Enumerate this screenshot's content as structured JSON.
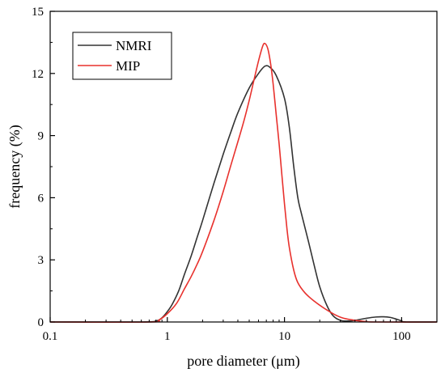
{
  "chart_data": {
    "type": "line",
    "title": "",
    "xlabel": "pore diameter (μm)",
    "ylabel": "frequency (%)",
    "x_scale": "log",
    "xlim": [
      0.1,
      200
    ],
    "ylim": [
      0,
      15
    ],
    "x_ticks": [
      0.1,
      1,
      10,
      100
    ],
    "x_tick_labels": [
      "0.1",
      "1",
      "10",
      "100"
    ],
    "y_ticks": [
      0,
      3,
      6,
      9,
      12,
      15
    ],
    "y_tick_labels": [
      "0",
      "3",
      "6",
      "9",
      "12",
      "15"
    ],
    "grid": false,
    "legend": {
      "position": "top-left",
      "boxed": true
    },
    "series": [
      {
        "name": "NMRI",
        "color": "#333333",
        "points": [
          [
            0.1,
            0
          ],
          [
            0.6,
            0
          ],
          [
            0.8,
            0.05
          ],
          [
            0.9,
            0.2
          ],
          [
            1.0,
            0.5
          ],
          [
            1.1,
            0.85
          ],
          [
            1.25,
            1.5
          ],
          [
            1.4,
            2.3
          ],
          [
            1.6,
            3.2
          ],
          [
            1.8,
            4.1
          ],
          [
            2.0,
            4.9
          ],
          [
            2.5,
            6.7
          ],
          [
            3.0,
            8.1
          ],
          [
            3.5,
            9.2
          ],
          [
            4.0,
            10.1
          ],
          [
            5.0,
            11.3
          ],
          [
            6.0,
            12.0
          ],
          [
            6.8,
            12.35
          ],
          [
            7.5,
            12.3
          ],
          [
            8.5,
            11.9
          ],
          [
            10,
            10.8
          ],
          [
            11,
            9.4
          ],
          [
            12,
            7.5
          ],
          [
            13,
            6.0
          ],
          [
            14,
            5.2
          ],
          [
            16,
            3.9
          ],
          [
            18,
            2.7
          ],
          [
            20,
            1.7
          ],
          [
            23,
            0.8
          ],
          [
            26,
            0.3
          ],
          [
            30,
            0.08
          ],
          [
            35,
            0.05
          ],
          [
            40,
            0.08
          ],
          [
            50,
            0.18
          ],
          [
            60,
            0.24
          ],
          [
            70,
            0.25
          ],
          [
            80,
            0.22
          ],
          [
            90,
            0.14
          ],
          [
            100,
            0.05
          ],
          [
            110,
            0
          ],
          [
            200,
            0
          ]
        ]
      },
      {
        "name": "MIP",
        "color": "#e8312d",
        "points": [
          [
            0.1,
            0
          ],
          [
            0.7,
            0
          ],
          [
            0.85,
            0.1
          ],
          [
            1.0,
            0.4
          ],
          [
            1.2,
            0.9
          ],
          [
            1.4,
            1.6
          ],
          [
            1.6,
            2.2
          ],
          [
            1.8,
            2.8
          ],
          [
            2.0,
            3.4
          ],
          [
            2.5,
            4.9
          ],
          [
            3.0,
            6.3
          ],
          [
            3.5,
            7.6
          ],
          [
            4.0,
            8.7
          ],
          [
            4.5,
            9.7
          ],
          [
            5.0,
            10.7
          ],
          [
            5.5,
            11.7
          ],
          [
            6.0,
            12.6
          ],
          [
            6.5,
            13.3
          ],
          [
            6.8,
            13.45
          ],
          [
            7.2,
            13.2
          ],
          [
            7.6,
            12.5
          ],
          [
            8.0,
            11.5
          ],
          [
            8.5,
            10.0
          ],
          [
            9.0,
            8.6
          ],
          [
            9.5,
            7.1
          ],
          [
            10,
            5.7
          ],
          [
            10.5,
            4.5
          ],
          [
            11,
            3.6
          ],
          [
            12,
            2.5
          ],
          [
            13,
            1.9
          ],
          [
            15,
            1.4
          ],
          [
            18,
            1.0
          ],
          [
            22,
            0.65
          ],
          [
            27,
            0.35
          ],
          [
            32,
            0.18
          ],
          [
            40,
            0.08
          ],
          [
            50,
            0.02
          ],
          [
            60,
            0
          ],
          [
            200,
            0
          ]
        ]
      }
    ]
  }
}
